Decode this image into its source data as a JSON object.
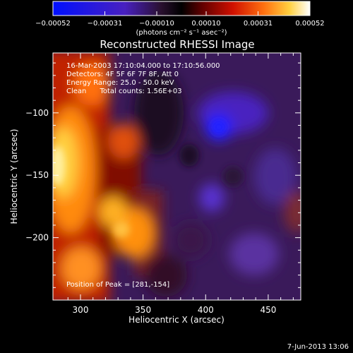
{
  "chart_data": {
    "type": "heatmap",
    "title": "Reconstructed RHESSI Image",
    "xlabel": "Heliocentric X (arcsec)",
    "ylabel": "Heliocentric Y (arcsec)",
    "xlim": [
      278,
      476
    ],
    "ylim": [
      -250,
      -52
    ],
    "x_ticks": [
      300,
      350,
      400,
      450
    ],
    "y_ticks": [
      -100,
      -150,
      -200
    ],
    "x_tick_labels": [
      "300",
      "350",
      "400",
      "450"
    ],
    "y_tick_labels": [
      "−100",
      "−150",
      "−200"
    ],
    "colorbar": {
      "range": [
        -0.00052,
        0.00052
      ],
      "ticks": [
        -0.00052,
        -0.00031,
        -0.0001,
        0.0001,
        0.00031,
        0.00052
      ],
      "tick_labels": [
        "−0.00052",
        "−0.00031",
        "−0.00010",
        "0.00010",
        "0.00031",
        "0.00052"
      ],
      "unit_label": "(photons cm⁻² s⁻¹ asec⁻²)"
    },
    "annotations": [
      "16-Mar-2003 17:10:04.000 to 17:10:56.000",
      "Detectors: 4F 5F 6F 7F 8F, Att 0",
      "Energy Range: 25.0 - 50.0 keV",
      "Clean      Total counts: 1.56E+03"
    ],
    "peak_label": "Position of Peak = [281,-154]",
    "peak": [
      281,
      -154
    ]
  },
  "footer": {
    "date": "7-Jun-2013 13:06"
  }
}
